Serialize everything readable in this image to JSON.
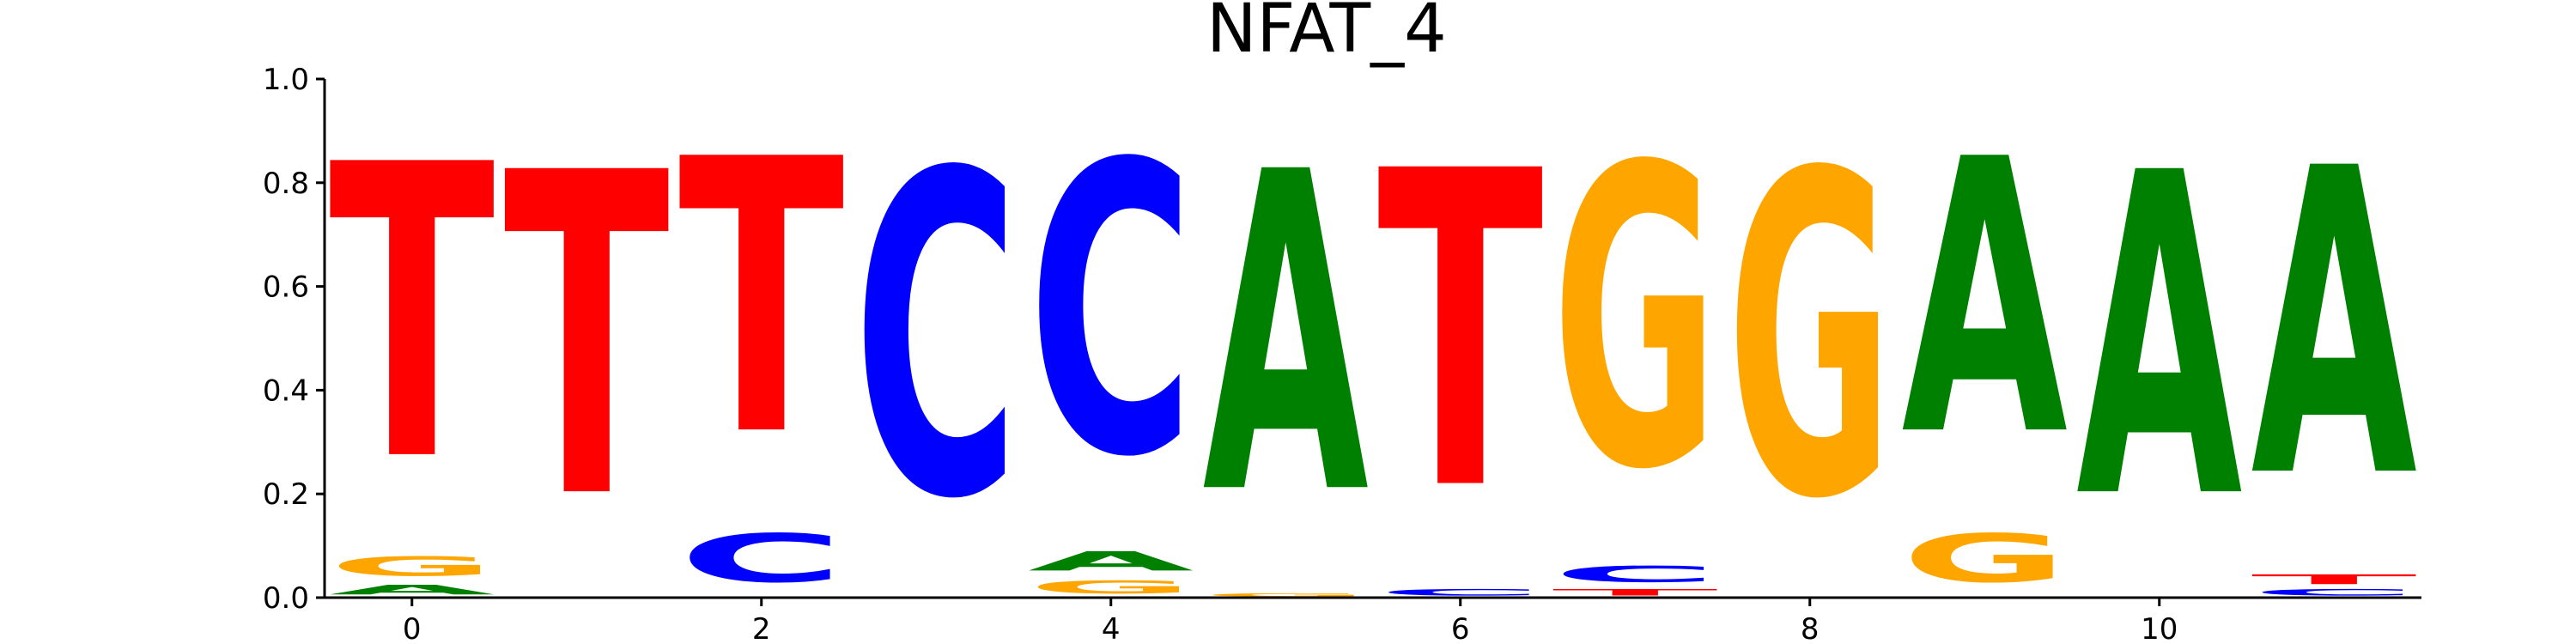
{
  "chart_data": {
    "type": "sequence-logo",
    "title": "NFAT_4",
    "xlabel": "",
    "ylabel": "",
    "xlim": [
      -0.5,
      11.5
    ],
    "ylim": [
      0,
      1.0
    ],
    "xticks": [
      0,
      2,
      4,
      6,
      8,
      10
    ],
    "yticks": [
      0.0,
      0.2,
      0.4,
      0.6,
      0.8,
      1.0
    ],
    "ytick_labels": [
      "0.0",
      "0.2",
      "0.4",
      "0.6",
      "0.8",
      "1.0"
    ],
    "grid": false,
    "colors": {
      "A": "#008000",
      "C": "#0000ff",
      "G": "#ffa500",
      "T": "#ff0000"
    },
    "positions": [
      {
        "pos": 0,
        "letters": [
          {
            "base": "A",
            "value": 0.03
          },
          {
            "base": "G",
            "value": 0.06
          },
          {
            "base": "T",
            "value": 0.91
          }
        ]
      },
      {
        "pos": 1,
        "letters": [
          {
            "base": "T",
            "value": 1.0
          }
        ]
      },
      {
        "pos": 2,
        "letters": [
          {
            "base": "C",
            "value": 0.15
          },
          {
            "base": "T",
            "value": 0.85
          }
        ]
      },
      {
        "pos": 3,
        "letters": [
          {
            "base": "C",
            "value": 1.0
          }
        ]
      },
      {
        "pos": 4,
        "letters": [
          {
            "base": "G",
            "value": 0.04
          },
          {
            "base": "A",
            "value": 0.06
          },
          {
            "base": "C",
            "value": 0.9
          }
        ]
      },
      {
        "pos": 5,
        "letters": [
          {
            "base": "G",
            "value": 0.01
          },
          {
            "base": "A",
            "value": 0.99
          }
        ]
      },
      {
        "pos": 6,
        "letters": [
          {
            "base": "C",
            "value": 0.02
          },
          {
            "base": "T",
            "value": 0.98
          }
        ]
      },
      {
        "pos": 7,
        "letters": [
          {
            "base": "T",
            "value": 0.02
          },
          {
            "base": "C",
            "value": 0.05
          },
          {
            "base": "G",
            "value": 0.93
          }
        ]
      },
      {
        "pos": 8,
        "letters": [
          {
            "base": "G",
            "value": 1.0
          }
        ]
      },
      {
        "pos": 9,
        "letters": [
          {
            "base": "G",
            "value": 0.15
          },
          {
            "base": "A",
            "value": 0.85
          }
        ]
      },
      {
        "pos": 10,
        "letters": [
          {
            "base": "A",
            "value": 1.0
          }
        ]
      },
      {
        "pos": 11,
        "letters": [
          {
            "base": "C",
            "value": 0.02
          },
          {
            "base": "T",
            "value": 0.03
          },
          {
            "base": "A",
            "value": 0.95
          }
        ]
      }
    ]
  }
}
